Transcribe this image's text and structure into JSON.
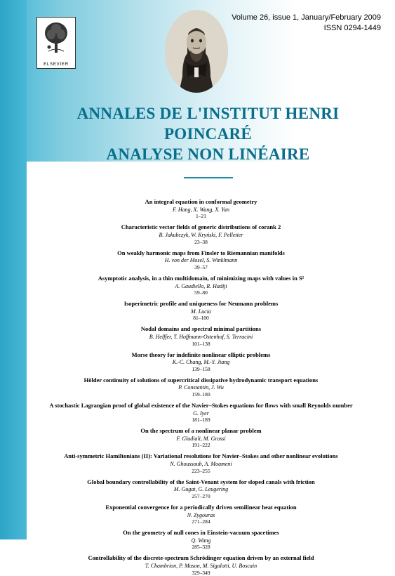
{
  "publisher_label": "ELSEVIER",
  "issue_line1": "Volume 26, issue 1, January/February 2009",
  "issue_line2": "ISSN 0294-1449",
  "journal_title_line1": "ANNALES DE L'INSTITUT HENRI POINCARÉ",
  "journal_title_line2": "ANALYSE NON LINÉAIRE",
  "colors": {
    "title_color": "#076e8c",
    "stripe_start": "#2da5c7",
    "stripe_end": "#4ab8d6",
    "divider": "#1a8aa8",
    "background": "#ffffff"
  },
  "toc": [
    {
      "title": "An integral equation in conformal geometry",
      "authors": "F. Hang, X. Wang, X. Yan",
      "pages": "1–21"
    },
    {
      "title": "Characteristic vector fields of generic distributions of corank 2",
      "authors": "B. Jakubczyk, W. Kryński, F. Pelletier",
      "pages": "23–38"
    },
    {
      "title": "On weakly harmonic maps from Finsler to Riemannian manifolds",
      "authors": "H. von der Mosel, S. Winklmann",
      "pages": "39–57"
    },
    {
      "title": "Asymptotic analysis, in a thin multidomain, of minimizing maps with values in S²",
      "authors": "A. Gaudiello, R. Hadiji",
      "pages": "59–80"
    },
    {
      "title": "Isoperimetric profile and uniqueness for Neumann problems",
      "authors": "M. Lucia",
      "pages": "81–100"
    },
    {
      "title": "Nodal domains and spectral minimal partitions",
      "authors": "B. Helffer, T. Hoffmann-Ostenhof, S. Terracini",
      "pages": "101–138"
    },
    {
      "title": "Morse theory for indefinite nonlinear elliptic problems",
      "authors": "K.-C. Chang, M.-Y. Jiang",
      "pages": "139–158"
    },
    {
      "title": "Hölder continuity of solutions of supercritical dissipative hydrodynamic transport equations",
      "authors": "P. Constantin, J. Wu",
      "pages": "159–180"
    },
    {
      "title": "A stochastic Lagrangian proof of global existence of the Navier–Stokes equations for flows with small Reynolds number",
      "authors": "G. Iyer",
      "pages": "181–189"
    },
    {
      "title": "On the spectrum of a nonlinear planar problem",
      "authors": "F. Gladiali, M. Grossi",
      "pages": "191–222"
    },
    {
      "title": "Anti-symmetric Hamiltonians (II): Variational resolutions for Navier–Stokes and other nonlinear evolutions",
      "authors": "N. Ghoussoub, A. Moameni",
      "pages": "223–255"
    },
    {
      "title": "Global boundary controllability of the Saint-Venant system for sloped canals with friction",
      "authors": "M. Gugat, G. Leugering",
      "pages": "257–270"
    },
    {
      "title": "Exponential convergence for a periodically driven semilinear heat equation",
      "authors": "N. Zygouras",
      "pages": "271–284"
    },
    {
      "title": "On the geometry of null cones in Einstein-vacuum spacetimes",
      "authors": "Q. Wang",
      "pages": "285–328"
    },
    {
      "title": "Controllability of the discrete-spectrum Schrödinger equation driven by an external field",
      "authors": "T. Chambrion, P. Mason, M. Sigalotti, U. Boscain",
      "pages": "329–349"
    }
  ]
}
